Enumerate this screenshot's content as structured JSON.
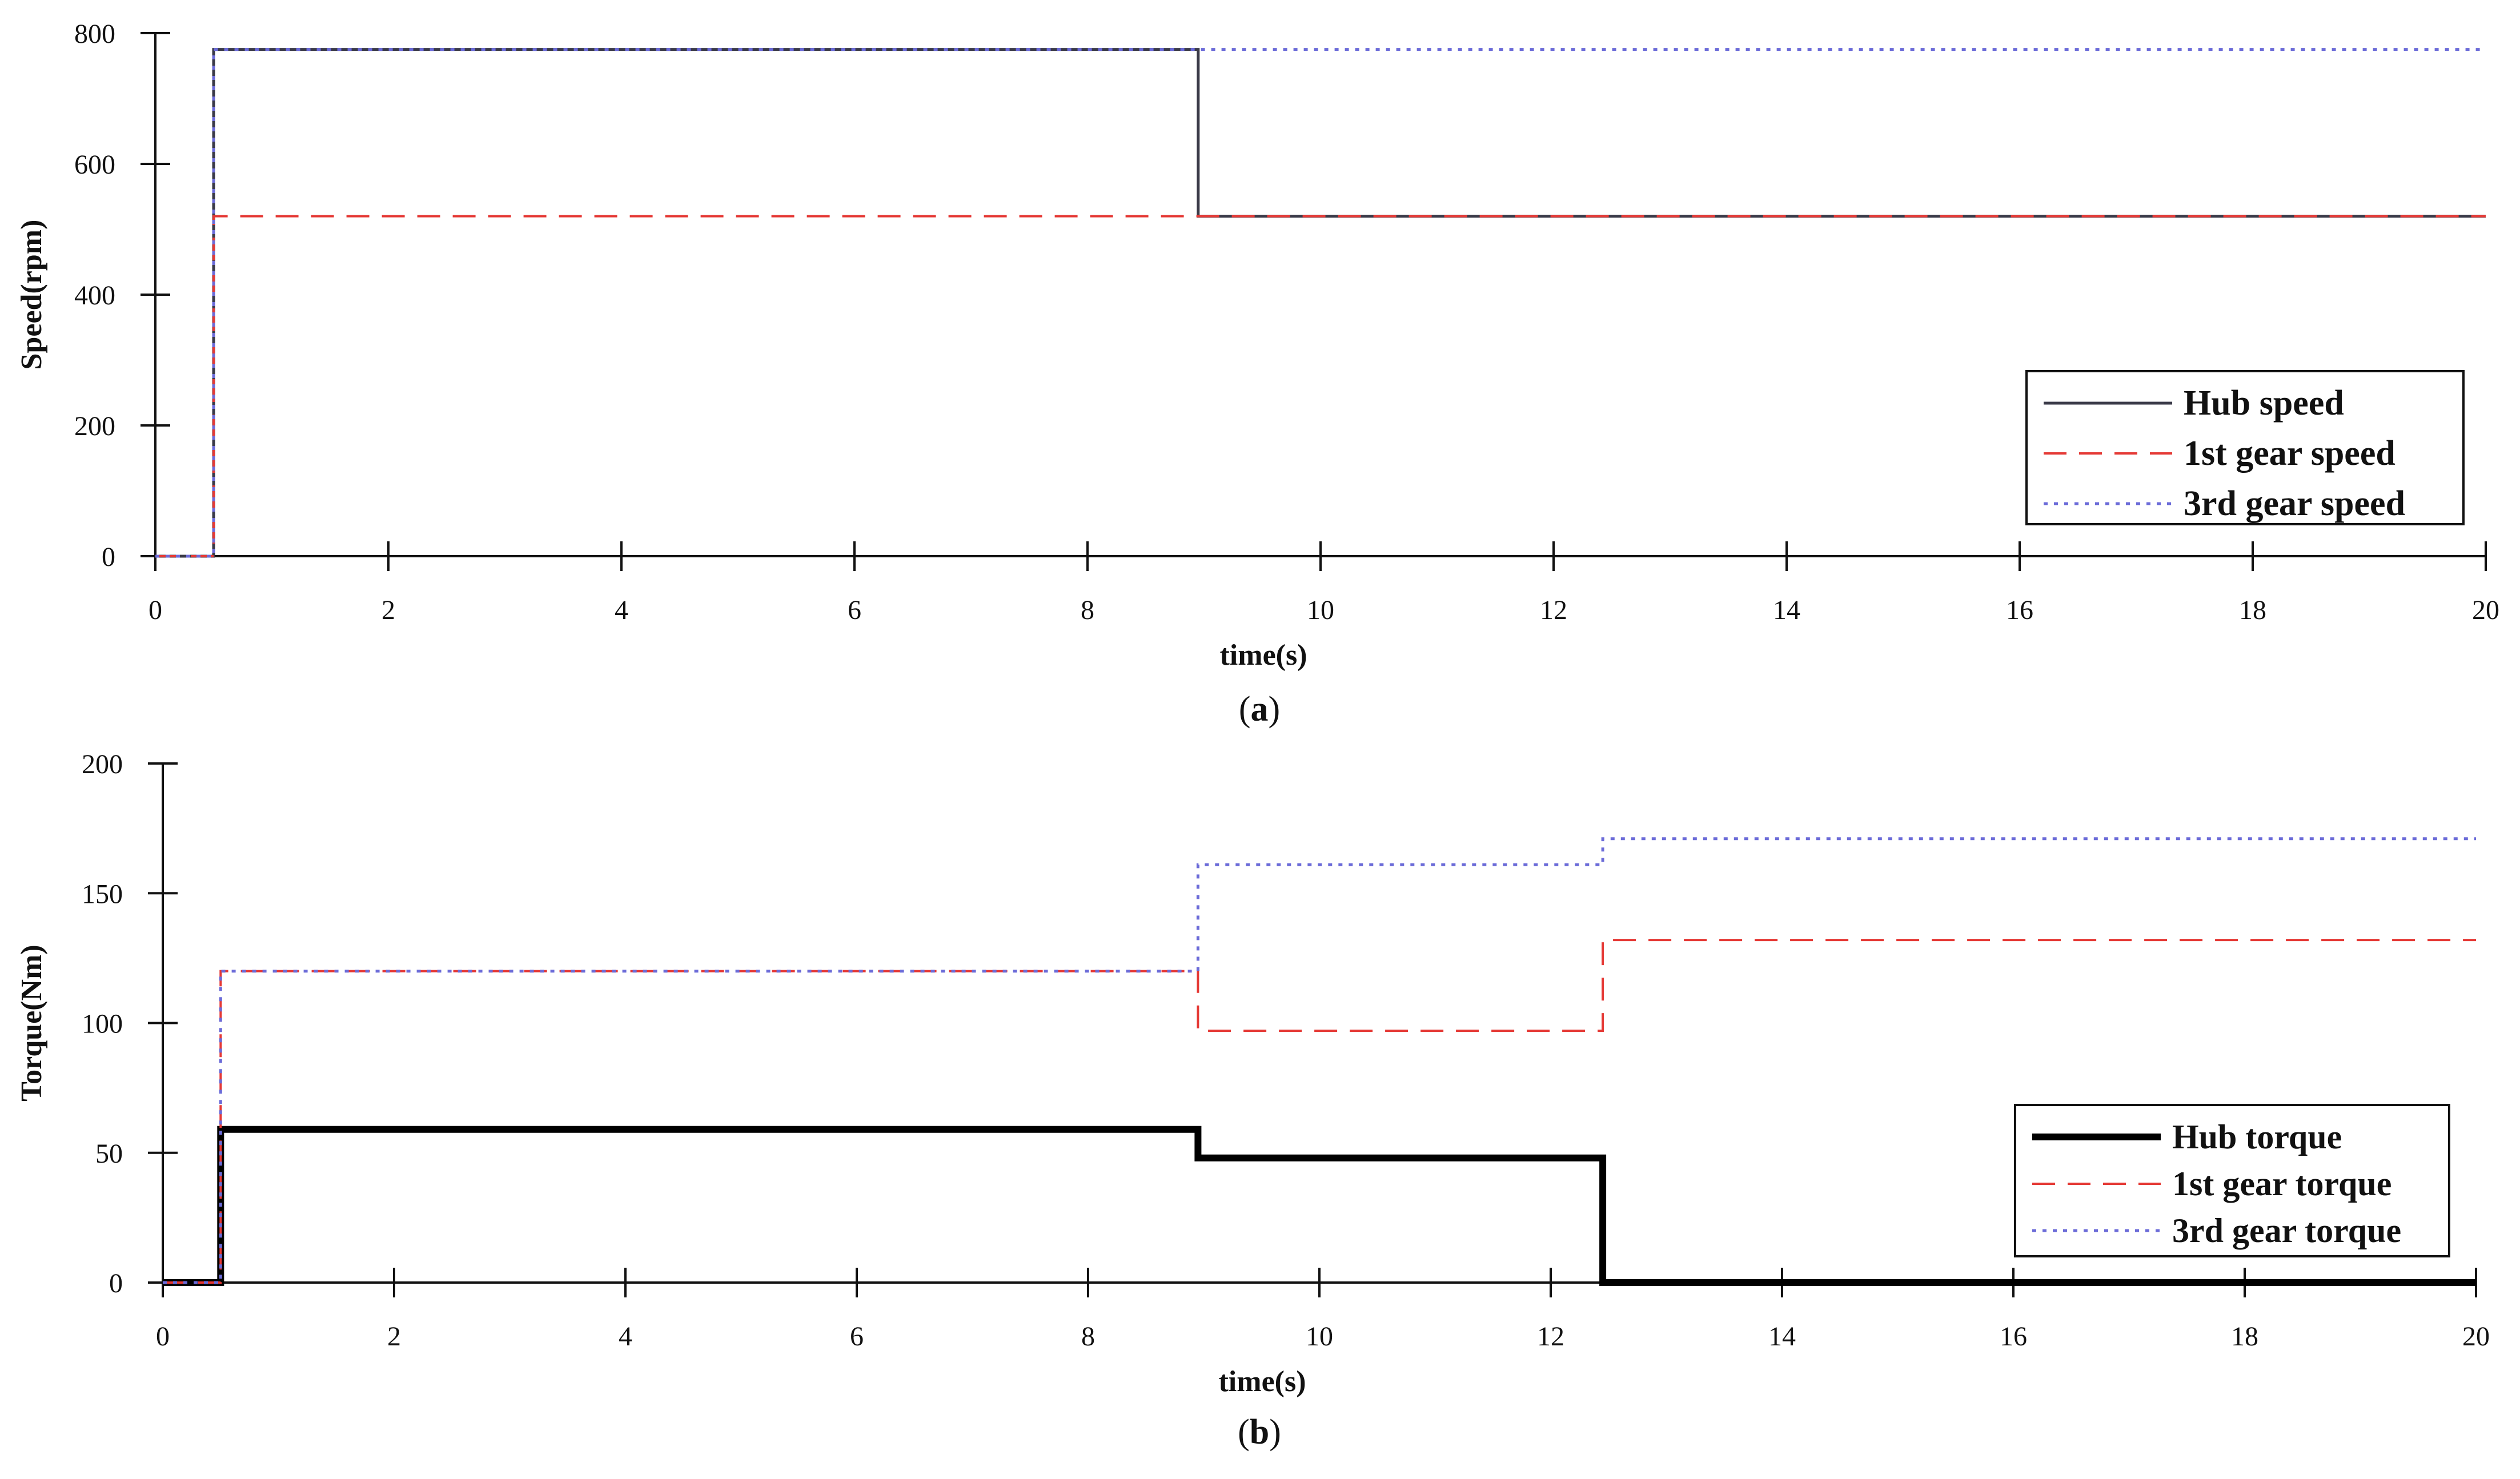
{
  "chart_data": [
    {
      "id": "speed",
      "type": "line",
      "caption_letter": "a",
      "title": "",
      "xlabel": "time(s)",
      "ylabel": "Speed(rpm)",
      "xlim": [
        0,
        20
      ],
      "ylim": [
        0,
        800
      ],
      "x_ticks": [
        0,
        2,
        4,
        6,
        8,
        10,
        12,
        14,
        16,
        18,
        20
      ],
      "y_ticks": [
        0,
        200,
        400,
        600,
        800
      ],
      "grid": false,
      "legend_position": "bottom-right",
      "series": [
        {
          "name": "Hub speed",
          "color": "#3a3a48",
          "style": "solid",
          "x": [
            0,
            0.5,
            0.5,
            8.95,
            8.95,
            20
          ],
          "y": [
            0,
            0,
            775,
            775,
            520,
            520
          ]
        },
        {
          "name": "1st gear speed",
          "color": "#e53935",
          "style": "dashed",
          "x": [
            0,
            0.5,
            0.5,
            20
          ],
          "y": [
            0,
            0,
            520,
            520
          ]
        },
        {
          "name": "3rd gear speed",
          "color": "#6b6bd8",
          "style": "dotted",
          "x": [
            0,
            0.5,
            0.5,
            20
          ],
          "y": [
            0,
            0,
            775,
            775
          ]
        }
      ]
    },
    {
      "id": "torque",
      "type": "line",
      "caption_letter": "b",
      "title": "",
      "xlabel": "time(s)",
      "ylabel": "Torque(Nm)",
      "xlim": [
        0,
        20
      ],
      "ylim": [
        0,
        200
      ],
      "x_ticks": [
        0,
        2,
        4,
        6,
        8,
        10,
        12,
        14,
        16,
        18,
        20
      ],
      "y_ticks": [
        0,
        50,
        100,
        150,
        200
      ],
      "grid": false,
      "legend_position": "bottom-right",
      "series": [
        {
          "name": "Hub torque",
          "color": "#000000",
          "style": "thick",
          "x": [
            0,
            0.5,
            0.5,
            8.95,
            8.95,
            12.45,
            12.45,
            20
          ],
          "y": [
            0,
            0,
            59,
            59,
            48,
            48,
            0,
            0
          ]
        },
        {
          "name": "1st gear torque",
          "color": "#e53935",
          "style": "dashed",
          "x": [
            0,
            0.5,
            0.5,
            8.95,
            8.95,
            12.45,
            12.45,
            20
          ],
          "y": [
            0,
            0,
            120,
            120,
            97,
            97,
            132,
            132
          ]
        },
        {
          "name": "3rd gear torque",
          "color": "#6b6bd8",
          "style": "dotted",
          "x": [
            0,
            0.5,
            0.5,
            8.95,
            8.95,
            12.45,
            12.45,
            20
          ],
          "y": [
            0,
            0,
            120,
            120,
            161,
            161,
            171,
            171
          ]
        }
      ]
    }
  ]
}
